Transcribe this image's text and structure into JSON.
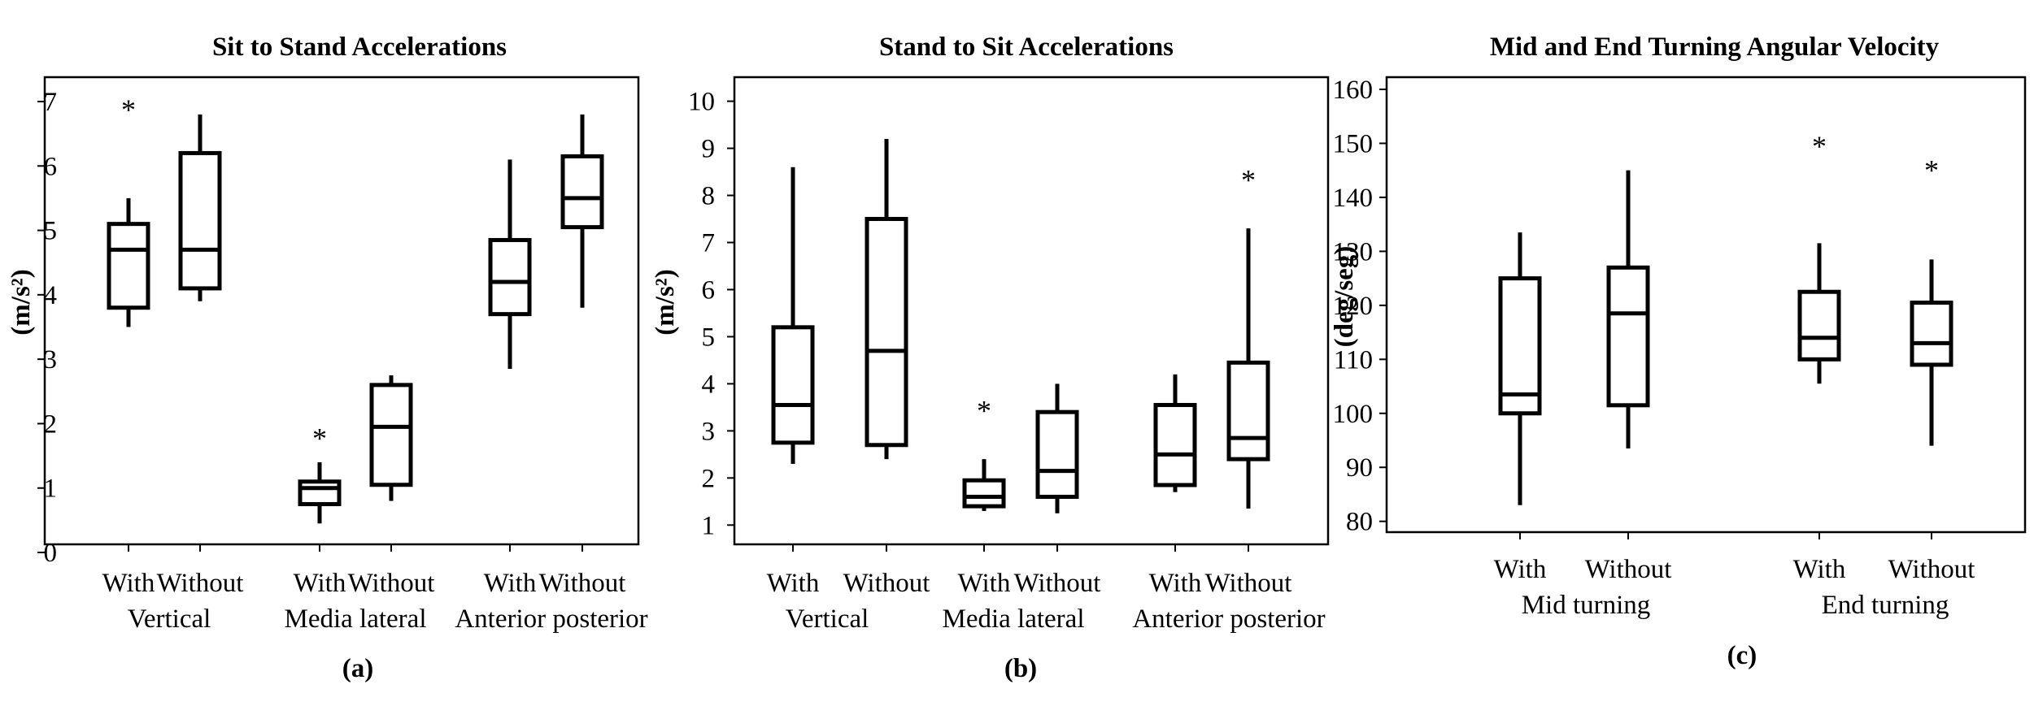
{
  "chart_data": [
    {
      "type": "box",
      "title": "Sit to Stand Accelerations",
      "panel_label": "(a)",
      "ylabel": "(m/s²)",
      "ylim": [
        0,
        7
      ],
      "yticks": [
        0,
        1,
        2,
        3,
        4,
        5,
        6,
        7
      ],
      "grid": false,
      "groups": [
        {
          "name": "Vertical",
          "categories": [
            {
              "label": "With",
              "min": 3.5,
              "q1": 3.8,
              "median": 4.7,
              "q3": 5.1,
              "max": 5.5,
              "outliers": [
                7.0
              ]
            },
            {
              "label": "Without",
              "min": 3.9,
              "q1": 4.1,
              "median": 4.7,
              "q3": 6.2,
              "max": 6.8,
              "outliers": []
            }
          ]
        },
        {
          "name": "Media lateral",
          "categories": [
            {
              "label": "With",
              "min": 0.45,
              "q1": 0.75,
              "median": 1.0,
              "q3": 1.1,
              "max": 1.4,
              "outliers": [
                1.9
              ]
            },
            {
              "label": "Without",
              "min": 0.8,
              "q1": 1.05,
              "median": 1.95,
              "q3": 2.6,
              "max": 2.75,
              "outliers": []
            }
          ]
        },
        {
          "name": "Anterior posterior",
          "categories": [
            {
              "label": "With",
              "min": 2.85,
              "q1": 3.7,
              "median": 4.2,
              "q3": 4.85,
              "max": 6.1,
              "outliers": []
            },
            {
              "label": "Without",
              "min": 3.8,
              "q1": 5.05,
              "median": 5.5,
              "q3": 6.15,
              "max": 6.8,
              "outliers": []
            }
          ]
        }
      ]
    },
    {
      "type": "box",
      "title": "Stand to Sit Accelerations",
      "panel_label": "(b)",
      "ylabel": "(m/s²)",
      "ylim": [
        0.85,
        10.2
      ],
      "yticks": [
        1,
        2,
        3,
        4,
        5,
        6,
        7,
        8,
        9,
        10
      ],
      "grid": false,
      "groups": [
        {
          "name": "Vertical",
          "categories": [
            {
              "label": "With",
              "min": 2.3,
              "q1": 2.75,
              "median": 3.55,
              "q3": 5.2,
              "max": 8.6,
              "outliers": []
            },
            {
              "label": "Without",
              "min": 2.4,
              "q1": 2.7,
              "median": 4.7,
              "q3": 7.5,
              "max": 9.2,
              "outliers": []
            }
          ]
        },
        {
          "name": "Media lateral",
          "categories": [
            {
              "label": "With",
              "min": 1.3,
              "q1": 1.4,
              "median": 1.6,
              "q3": 1.95,
              "max": 2.4,
              "outliers": [
                3.6
              ]
            },
            {
              "label": "Without",
              "min": 1.25,
              "q1": 1.6,
              "median": 2.15,
              "q3": 3.4,
              "max": 4.0,
              "outliers": []
            }
          ]
        },
        {
          "name": "Anterior posterior",
          "categories": [
            {
              "label": "With",
              "min": 1.7,
              "q1": 1.85,
              "median": 2.5,
              "q3": 3.55,
              "max": 4.2,
              "outliers": []
            },
            {
              "label": "Without",
              "min": 1.35,
              "q1": 2.4,
              "median": 2.85,
              "q3": 4.45,
              "max": 7.3,
              "outliers": [
                8.5
              ]
            }
          ]
        }
      ]
    },
    {
      "type": "box",
      "title": "Mid and End Turning Angular Velocity",
      "panel_label": "(c)",
      "ylabel": "(deg/seg)",
      "ylim": [
        78,
        161.5
      ],
      "yticks": [
        80,
        90,
        100,
        110,
        120,
        130,
        140,
        150,
        160
      ],
      "grid": false,
      "groups": [
        {
          "name": "Mid turning",
          "categories": [
            {
              "label": "With",
              "min": 83,
              "q1": 100,
              "median": 103.5,
              "q3": 125,
              "max": 133.5,
              "outliers": []
            },
            {
              "label": "Without",
              "min": 93.5,
              "q1": 101.5,
              "median": 118.5,
              "q3": 127,
              "max": 145,
              "outliers": []
            }
          ]
        },
        {
          "name": "End turning",
          "categories": [
            {
              "label": "With",
              "min": 105.5,
              "q1": 110,
              "median": 114,
              "q3": 122.5,
              "max": 131.5,
              "outliers": [
                151
              ]
            },
            {
              "label": "Without",
              "min": 94,
              "q1": 109,
              "median": 113,
              "q3": 120.5,
              "max": 128.5,
              "outliers": [
                146.5
              ]
            }
          ]
        }
      ]
    }
  ]
}
